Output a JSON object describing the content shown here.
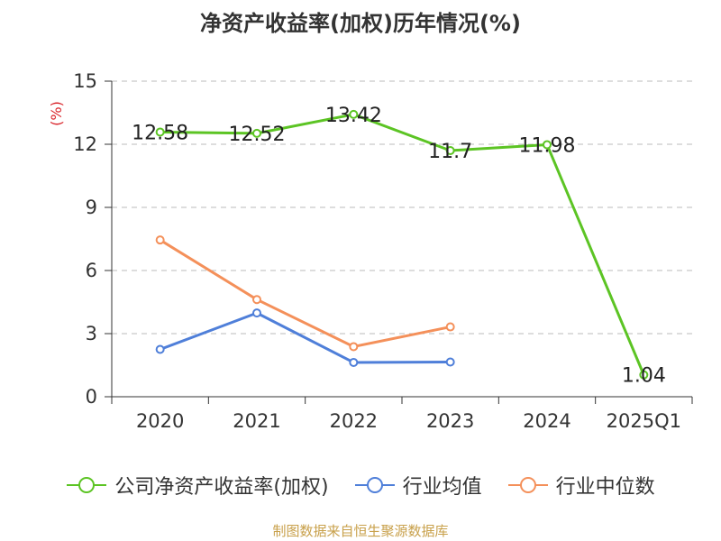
{
  "chart_data": {
    "type": "line",
    "title": "净资产收益率(加权)历年情况(%)",
    "ylabel": "(%)",
    "xlabel": "",
    "categories": [
      "2020",
      "2021",
      "2022",
      "2023",
      "2024",
      "2025Q1"
    ],
    "ylim": [
      0,
      15
    ],
    "yticks": [
      0,
      3,
      6,
      9,
      12,
      15
    ],
    "grid": true,
    "legend_position": "bottom",
    "series": [
      {
        "name": "公司净资产收益率(加权)",
        "color": "#5cc424",
        "values": [
          12.58,
          12.52,
          13.42,
          11.7,
          11.98,
          1.04
        ],
        "labels": [
          "12.58",
          "12.52",
          "13.42",
          "11.7",
          "11.98",
          "1.04"
        ],
        "show_labels": true
      },
      {
        "name": "行业均值",
        "color": "#4f7fd9",
        "values": [
          2.25,
          3.98,
          1.63,
          1.65,
          null,
          null
        ],
        "show_labels": false
      },
      {
        "name": "行业中位数",
        "color": "#f4905a",
        "values": [
          7.45,
          4.62,
          2.38,
          3.32,
          null,
          null
        ],
        "show_labels": false
      }
    ]
  },
  "source": "制图数据来自恒生聚源数据库"
}
